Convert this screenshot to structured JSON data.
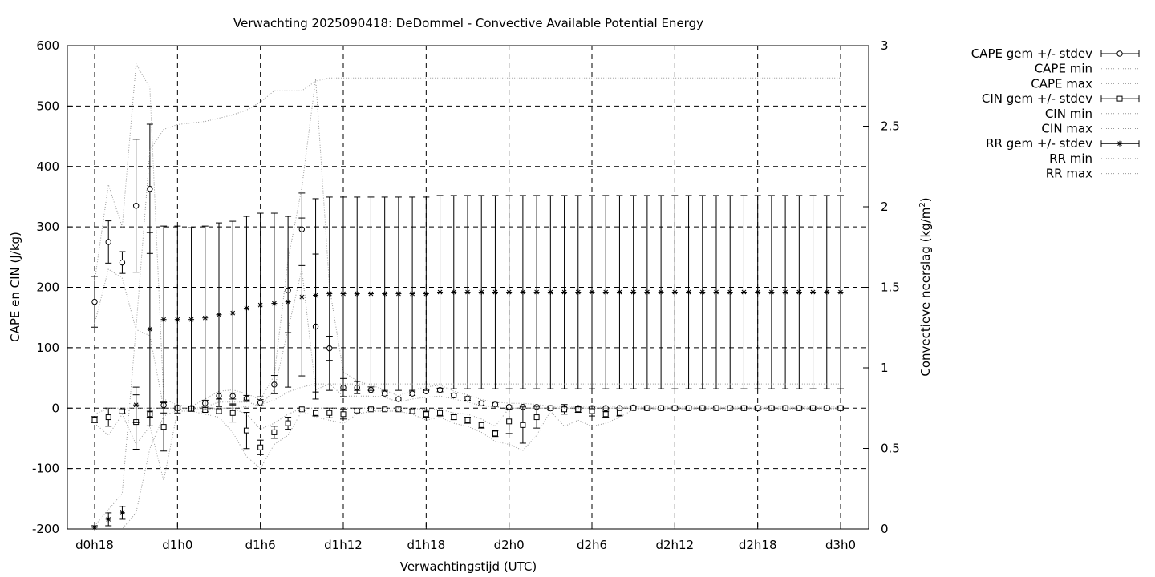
{
  "chart_data": {
    "type": "line",
    "title": "Verwachting 2025090418: DeDommel - Convective Available Potential Energy",
    "xlabel": "Verwachtingstijd (UTC)",
    "ylabel": "CAPE en CIN (J/kg)",
    "y2label_main": "Convectieve neerslag (kg/m",
    "y2label_sup": "2",
    "y2label_end": ")",
    "ylim": [
      -200,
      600
    ],
    "y2lim": [
      0,
      3
    ],
    "xlim": [
      -2,
      55
    ],
    "grid": true,
    "legend_position": "right-outside",
    "x_ticks": [
      {
        "x": 0,
        "label": "d0h18"
      },
      {
        "x": 6,
        "label": "d1h0"
      },
      {
        "x": 12,
        "label": "d1h6"
      },
      {
        "x": 18,
        "label": "d1h12"
      },
      {
        "x": 24,
        "label": "d1h18"
      },
      {
        "x": 30,
        "label": "d2h0"
      },
      {
        "x": 36,
        "label": "d2h6"
      },
      {
        "x": 42,
        "label": "d2h12"
      },
      {
        "x": 48,
        "label": "d2h18"
      },
      {
        "x": 54,
        "label": "d3h0"
      }
    ],
    "y_ticks": [
      {
        "v": -200,
        "label": "-200"
      },
      {
        "v": -100,
        "label": "-100"
      },
      {
        "v": 0,
        "label": "0"
      },
      {
        "v": 100,
        "label": "100"
      },
      {
        "v": 200,
        "label": "200"
      },
      {
        "v": 300,
        "label": "300"
      },
      {
        "v": 400,
        "label": "400"
      },
      {
        "v": 500,
        "label": "500"
      },
      {
        "v": 600,
        "label": "600"
      }
    ],
    "y2_ticks": [
      {
        "v": 0,
        "label": "0"
      },
      {
        "v": 0.5,
        "label": "0.5"
      },
      {
        "v": 1,
        "label": "1"
      },
      {
        "v": 1.5,
        "label": "1.5"
      },
      {
        "v": 2,
        "label": "2"
      },
      {
        "v": 2.5,
        "label": "2.5"
      },
      {
        "v": 3,
        "label": "3"
      }
    ],
    "x": [
      0,
      1,
      2,
      3,
      4,
      5,
      6,
      7,
      8,
      9,
      10,
      11,
      12,
      13,
      14,
      15,
      16,
      17,
      18,
      19,
      20,
      21,
      22,
      23,
      24,
      25,
      26,
      27,
      28,
      29,
      30,
      31,
      32,
      33,
      34,
      35,
      36,
      37,
      38,
      39,
      40,
      41,
      42,
      43,
      44,
      45,
      46,
      47,
      48,
      49,
      50,
      51,
      52,
      53,
      54
    ],
    "series": [
      {
        "name": "CAPE gem +/- stdev",
        "axis": "y1",
        "style": "circle-errorbar",
        "mean": [
          176,
          275,
          241,
          335,
          363,
          5,
          1,
          0,
          8,
          20,
          20,
          16,
          9,
          39,
          195,
          296,
          135,
          99,
          34,
          34,
          30,
          24,
          15,
          24,
          28,
          30,
          21,
          16,
          8,
          6,
          2,
          2,
          2,
          0,
          0,
          0,
          0,
          0,
          0,
          1,
          0,
          0,
          0,
          0,
          0,
          0,
          0,
          0,
          0,
          0,
          0,
          0,
          0,
          0,
          0
        ],
        "sd": [
          42,
          35,
          18,
          110,
          107,
          5,
          3,
          2,
          5,
          5,
          5,
          5,
          5,
          15,
          70,
          60,
          120,
          20,
          15,
          10,
          5,
          3,
          3,
          3,
          3,
          3,
          3,
          3,
          3,
          3,
          2,
          2,
          2,
          1,
          1,
          1,
          1,
          1,
          1,
          1,
          1,
          1,
          1,
          1,
          1,
          1,
          1,
          1,
          1,
          1,
          1,
          1,
          1,
          1,
          1
        ]
      },
      {
        "name": "CAPE min",
        "axis": "y1",
        "style": "dotted",
        "values": [
          140,
          230,
          215,
          130,
          120,
          0,
          0,
          0,
          2,
          10,
          10,
          10,
          4,
          30,
          130,
          230,
          30,
          40,
          20,
          20,
          20,
          18,
          10,
          15,
          18,
          20,
          15,
          10,
          4,
          2,
          0,
          0,
          0,
          0,
          0,
          0,
          0,
          0,
          0,
          0,
          0,
          0,
          0,
          0,
          0,
          0,
          0,
          0,
          0,
          0,
          0,
          0,
          0,
          0,
          0
        ]
      },
      {
        "name": "CAPE max",
        "axis": "y1",
        "style": "dotted",
        "values": [
          210,
          370,
          300,
          570,
          530,
          15,
          5,
          3,
          15,
          28,
          30,
          24,
          14,
          54,
          245,
          365,
          545,
          200,
          60,
          45,
          38,
          30,
          20,
          30,
          35,
          38,
          28,
          22,
          14,
          10,
          8,
          8,
          6,
          3,
          3,
          3,
          3,
          3,
          3,
          3,
          3,
          3,
          3,
          3,
          3,
          3,
          3,
          3,
          3,
          3,
          3,
          3,
          3,
          3,
          3
        ]
      },
      {
        "name": "CIN gem +/- stdev",
        "axis": "y1",
        "style": "square-errorbar",
        "mean": [
          -19,
          -15,
          -5,
          -23,
          -10,
          -31,
          0,
          -1,
          -3,
          -5,
          -8,
          -37,
          -65,
          -40,
          -25,
          -2,
          -8,
          -8,
          -10,
          -4,
          -2,
          -2,
          -2,
          -5,
          -10,
          -8,
          -15,
          -20,
          -28,
          -42,
          -22,
          -28,
          -15,
          0,
          -2,
          -2,
          -5,
          -10,
          -8,
          0,
          0,
          0,
          0,
          0,
          0,
          0,
          0,
          0,
          0,
          0,
          0,
          0,
          0,
          0,
          0
        ],
        "sd": [
          5,
          15,
          3,
          45,
          5,
          40,
          2,
          2,
          3,
          4,
          15,
          30,
          12,
          10,
          10,
          2,
          5,
          8,
          8,
          3,
          2,
          2,
          2,
          3,
          5,
          5,
          4,
          5,
          5,
          5,
          20,
          30,
          18,
          2,
          8,
          5,
          8,
          5,
          5,
          2,
          2,
          2,
          2,
          2,
          2,
          2,
          2,
          2,
          2,
          2,
          2,
          2,
          2,
          2,
          2
        ]
      },
      {
        "name": "CIN min",
        "axis": "y1",
        "style": "dotted",
        "values": [
          -25,
          -45,
          -10,
          -60,
          -30,
          -120,
          -5,
          -5,
          -10,
          -15,
          -40,
          -80,
          -100,
          -60,
          -45,
          -5,
          -15,
          -20,
          -25,
          -10,
          -5,
          -5,
          -5,
          -10,
          -20,
          -15,
          -25,
          -30,
          -40,
          -55,
          -60,
          -70,
          -45,
          -5,
          -30,
          -20,
          -30,
          -25,
          -15,
          -2,
          -2,
          -2,
          -2,
          -2,
          -2,
          -2,
          -2,
          -2,
          -2,
          -2,
          -2,
          -2,
          -2,
          -2,
          -2
        ]
      },
      {
        "name": "CIN max",
        "axis": "y1",
        "style": "dotted",
        "values": [
          -10,
          0,
          0,
          0,
          0,
          0,
          0,
          0,
          0,
          0,
          0,
          -10,
          -35,
          -25,
          -10,
          0,
          0,
          0,
          0,
          0,
          0,
          0,
          0,
          0,
          -2,
          -2,
          -8,
          -10,
          -18,
          -30,
          0,
          0,
          0,
          0,
          0,
          0,
          0,
          0,
          0,
          0,
          0,
          0,
          0,
          0,
          0,
          0,
          0,
          0,
          0,
          0,
          0,
          0,
          0,
          0,
          0
        ]
      },
      {
        "name": "RR gem +/- stdev",
        "axis": "y2",
        "style": "star-errorbar",
        "mean": [
          0.01,
          0.06,
          0.1,
          0.77,
          1.24,
          1.3,
          1.3,
          1.3,
          1.31,
          1.33,
          1.34,
          1.37,
          1.39,
          1.4,
          1.41,
          1.44,
          1.45,
          1.46,
          1.46,
          1.46,
          1.46,
          1.46,
          1.46,
          1.46,
          1.46,
          1.47,
          1.47,
          1.47,
          1.47,
          1.47,
          1.47,
          1.47,
          1.47,
          1.47,
          1.47,
          1.47,
          1.47,
          1.47,
          1.47,
          1.47,
          1.47,
          1.47,
          1.47,
          1.47,
          1.47,
          1.47,
          1.47,
          1.47,
          1.47,
          1.47,
          1.47,
          1.47,
          1.47,
          1.47,
          1.47
        ],
        "sd": [
          0.01,
          0.04,
          0.04,
          0.11,
          0.6,
          0.58,
          0.58,
          0.57,
          0.57,
          0.57,
          0.57,
          0.57,
          0.57,
          0.56,
          0.53,
          0.49,
          0.6,
          0.6,
          0.6,
          0.6,
          0.6,
          0.6,
          0.6,
          0.6,
          0.6,
          0.6,
          0.6,
          0.6,
          0.6,
          0.6,
          0.6,
          0.6,
          0.6,
          0.6,
          0.6,
          0.6,
          0.6,
          0.6,
          0.6,
          0.6,
          0.6,
          0.6,
          0.6,
          0.6,
          0.6,
          0.6,
          0.6,
          0.6,
          0.6,
          0.6,
          0.6,
          0.6,
          0.6,
          0.6,
          0.6
        ]
      },
      {
        "name": "RR min",
        "axis": "y2",
        "style": "dotted",
        "values": [
          0,
          0,
          0,
          0.1,
          0.5,
          0.7,
          0.74,
          0.74,
          0.74,
          0.75,
          0.75,
          0.76,
          0.77,
          0.8,
          0.85,
          0.88,
          0.9,
          0.9,
          0.9,
          0.9,
          0.9,
          0.9,
          0.9,
          0.9,
          0.9,
          0.9,
          0.9,
          0.9,
          0.9,
          0.9,
          0.9,
          0.9,
          0.9,
          0.9,
          0.9,
          0.9,
          0.9,
          0.9,
          0.9,
          0.9,
          0.9,
          0.9,
          0.9,
          0.9,
          0.9,
          0.9,
          0.9,
          0.9,
          0.9,
          0.9,
          0.9,
          0.9,
          0.9,
          0.9,
          0.9
        ]
      },
      {
        "name": "RR max",
        "axis": "y2",
        "style": "dotted",
        "values": [
          0.02,
          0.12,
          0.22,
          1.25,
          2.35,
          2.48,
          2.51,
          2.52,
          2.53,
          2.55,
          2.57,
          2.6,
          2.65,
          2.72,
          2.72,
          2.72,
          2.78,
          2.8,
          2.8,
          2.8,
          2.8,
          2.8,
          2.8,
          2.8,
          2.8,
          2.8,
          2.8,
          2.8,
          2.8,
          2.8,
          2.8,
          2.8,
          2.8,
          2.8,
          2.8,
          2.8,
          2.8,
          2.8,
          2.8,
          2.8,
          2.8,
          2.8,
          2.8,
          2.8,
          2.8,
          2.8,
          2.8,
          2.8,
          2.8,
          2.8,
          2.8,
          2.8,
          2.8,
          2.8,
          2.8
        ]
      }
    ]
  }
}
